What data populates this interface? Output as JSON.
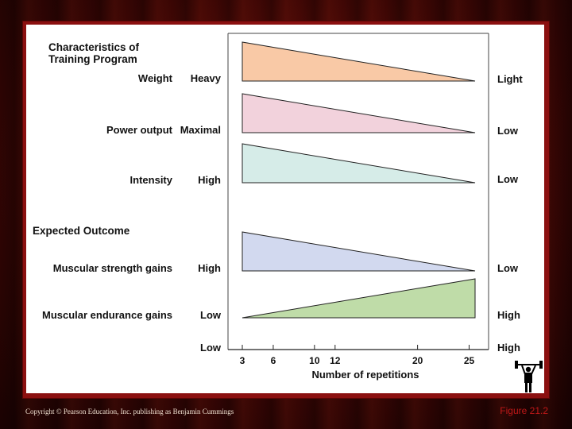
{
  "section_program": "Characteristics of\nTraining Program",
  "section_program_lines": [
    "Characteristics of",
    "Training Program"
  ],
  "section_outcome": "Expected Outcome",
  "rows": [
    {
      "label": "Weight",
      "left": "Heavy",
      "right": "Light",
      "color": "#f9c9a6",
      "direction": "decreasing"
    },
    {
      "label": "Power output",
      "left": "Maximal",
      "right": "Low",
      "color": "#f2d2dc",
      "direction": "decreasing"
    },
    {
      "label": "Intensity",
      "left": "High",
      "right": "Low",
      "color": "#d6ece8",
      "direction": "decreasing"
    },
    {
      "label": "Muscular strength gains",
      "left": "High",
      "right": "Low",
      "color": "#d2d9ef",
      "direction": "decreasing"
    },
    {
      "label": "Muscular endurance gains",
      "left": "Low",
      "right": "High",
      "color": "#bfdca8",
      "direction": "increasing"
    }
  ],
  "axis": {
    "left_label": "Low",
    "right_label": "High",
    "ticks": [
      3,
      6,
      10,
      12,
      20,
      25
    ],
    "title": "Number of repetitions",
    "range": [
      3,
      25.5
    ]
  },
  "footer": {
    "copyright": "Copyright © Pearson Education, Inc. publishing as Benjamin Cummings",
    "figure": "Figure 21.2"
  },
  "icons": [
    "weightlifter-icon"
  ]
}
